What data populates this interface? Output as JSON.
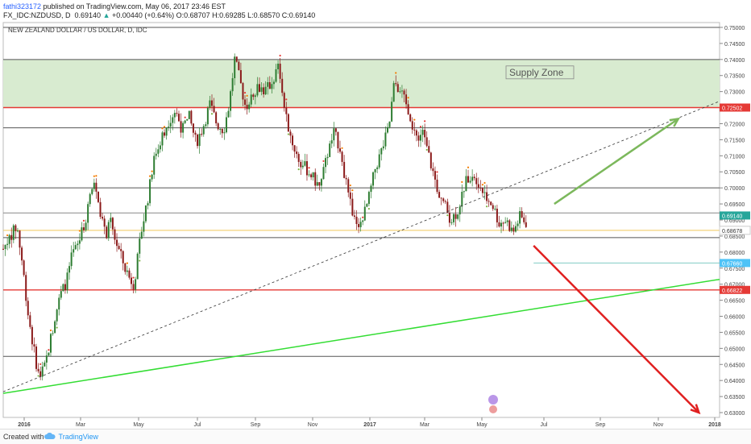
{
  "header": {
    "author": "fathi323172",
    "published": " published on TradingView.com, May 06, 2017 23:46 EST",
    "symbol": "FX_IDC:NZDUSD, D",
    "last": "0.69140",
    "change_arrow": "▲",
    "change": "+0.00440 (+0.64%)",
    "ohlc": "O:0.68707 H:0.69285 L:0.68570 C:0.69140"
  },
  "footer": {
    "created_with": "Created with",
    "brand": "TradingView"
  },
  "chart_data": {
    "type": "candlestick",
    "title": "NEW ZEALAND DOLLAR / US DOLLAR, D, IDC",
    "x_ticks": [
      "2016",
      "Mar",
      "May",
      "Jul",
      "Sep",
      "Nov",
      "2017",
      "Mar",
      "May",
      "Jul",
      "Sep",
      "Nov",
      "2018"
    ],
    "y_ticks": [
      "0.75000",
      "0.74500",
      "0.74000",
      "0.73500",
      "0.73000",
      "0.72500",
      "0.72000",
      "0.71500",
      "0.71000",
      "0.70500",
      "0.70000",
      "0.69500",
      "0.69000",
      "0.68500",
      "0.68000",
      "0.67500",
      "0.67000",
      "0.66500",
      "0.66000",
      "0.65500",
      "0.65000",
      "0.64500",
      "0.64000",
      "0.63500",
      "0.63000"
    ],
    "ylim": [
      0.6285,
      0.7515
    ],
    "supply_zone": {
      "label": "Supply Zone",
      "low": 0.725,
      "high": 0.74
    },
    "price_labels": [
      {
        "text": "0.72502",
        "value": 0.72502,
        "color": "#e53935"
      },
      {
        "text": "0.69140",
        "value": 0.6914,
        "color": "#26a69a"
      },
      {
        "text": "0.68678",
        "value": 0.68678,
        "color": "#ffffff"
      },
      {
        "text": "0.67660",
        "value": 0.6766,
        "color": "#4fc3f7"
      },
      {
        "text": "0.66822",
        "value": 0.66822,
        "color": "#e53935"
      }
    ],
    "horizontal_levels": [
      {
        "value": 0.75,
        "color": "#555555"
      },
      {
        "value": 0.74,
        "color": "#555555"
      },
      {
        "value": 0.72502,
        "color": "#e53935"
      },
      {
        "value": 0.7187,
        "color": "#555555"
      },
      {
        "value": 0.7,
        "color": "#555555"
      },
      {
        "value": 0.6922,
        "color": "#888888"
      },
      {
        "value": 0.68678,
        "color": "#f0c85a"
      },
      {
        "value": 0.6845,
        "color": "#555555"
      },
      {
        "value": 0.66822,
        "color": "#e53935"
      },
      {
        "value": 0.6475,
        "color": "#555555"
      }
    ],
    "candle_path": [
      [
        0,
        0.681
      ],
      [
        5,
        0.685
      ],
      [
        10,
        0.688
      ],
      [
        14,
        0.676
      ],
      [
        18,
        0.661
      ],
      [
        22,
        0.65
      ],
      [
        26,
        0.641
      ],
      [
        30,
        0.644
      ],
      [
        34,
        0.652
      ],
      [
        38,
        0.661
      ],
      [
        42,
        0.667
      ],
      [
        46,
        0.671
      ],
      [
        50,
        0.679
      ],
      [
        54,
        0.682
      ],
      [
        58,
        0.687
      ],
      [
        62,
        0.695
      ],
      [
        66,
        0.702
      ],
      [
        70,
        0.694
      ],
      [
        74,
        0.685
      ],
      [
        78,
        0.689
      ],
      [
        82,
        0.683
      ],
      [
        86,
        0.678
      ],
      [
        90,
        0.673
      ],
      [
        95,
        0.67
      ],
      [
        100,
        0.686
      ],
      [
        105,
        0.697
      ],
      [
        110,
        0.71
      ],
      [
        115,
        0.716
      ],
      [
        120,
        0.721
      ],
      [
        125,
        0.724
      ],
      [
        130,
        0.718
      ],
      [
        135,
        0.722
      ],
      [
        140,
        0.714
      ],
      [
        145,
        0.719
      ],
      [
        150,
        0.726
      ],
      [
        155,
        0.72
      ],
      [
        160,
        0.718
      ],
      [
        164,
        0.726
      ],
      [
        168,
        0.74
      ],
      [
        172,
        0.733
      ],
      [
        176,
        0.725
      ],
      [
        180,
        0.729
      ],
      [
        185,
        0.732
      ],
      [
        190,
        0.73
      ],
      [
        195,
        0.733
      ],
      [
        200,
        0.738
      ],
      [
        205,
        0.722
      ],
      [
        210,
        0.714
      ],
      [
        215,
        0.708
      ],
      [
        220,
        0.706
      ],
      [
        225,
        0.703
      ],
      [
        230,
        0.7
      ],
      [
        235,
        0.71
      ],
      [
        240,
        0.717
      ],
      [
        245,
        0.712
      ],
      [
        250,
        0.698
      ],
      [
        255,
        0.69
      ],
      [
        260,
        0.689
      ],
      [
        265,
        0.696
      ],
      [
        270,
        0.706
      ],
      [
        275,
        0.712
      ],
      [
        280,
        0.719
      ],
      [
        284,
        0.733
      ],
      [
        288,
        0.73
      ],
      [
        292,
        0.728
      ],
      [
        296,
        0.718
      ],
      [
        300,
        0.716
      ],
      [
        305,
        0.717
      ],
      [
        310,
        0.708
      ],
      [
        315,
        0.7
      ],
      [
        320,
        0.695
      ],
      [
        325,
        0.69
      ],
      [
        330,
        0.693
      ],
      [
        335,
        0.701
      ],
      [
        340,
        0.705
      ],
      [
        345,
        0.702
      ],
      [
        350,
        0.697
      ],
      [
        355,
        0.695
      ],
      [
        360,
        0.689
      ],
      [
        365,
        0.69
      ],
      [
        370,
        0.686
      ],
      [
        375,
        0.691
      ],
      [
        380,
        0.689
      ]
    ],
    "annotations": {
      "trendline_dashed": {
        "from": [
          0,
          0.6365
        ],
        "to": [
          520,
          0.727
        ]
      },
      "trendline_green": {
        "from": [
          0,
          0.636
        ],
        "to": [
          520,
          0.6715
        ]
      },
      "arrow_up_green": {
        "from": [
          400,
          0.695
        ],
        "to": [
          490,
          0.7215
        ]
      },
      "arrow_down_red": {
        "from": [
          385,
          0.682
        ],
        "to": [
          505,
          0.63
        ]
      }
    },
    "grid": false
  }
}
